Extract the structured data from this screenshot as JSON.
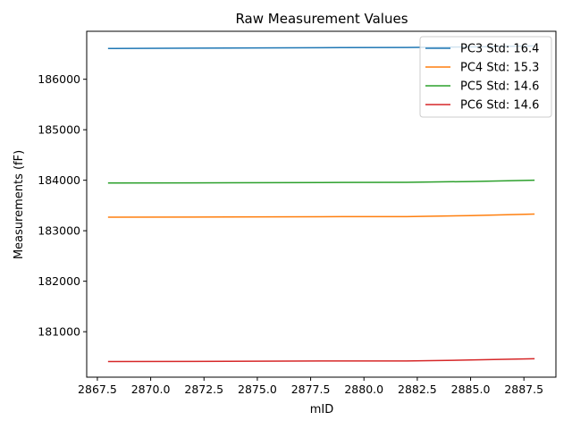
{
  "chart_data": {
    "type": "line",
    "title": "Raw Measurement Values",
    "xlabel": "mID",
    "ylabel": "Measurements (fF)",
    "xlim": [
      2867.0,
      2889.0
    ],
    "ylim": [
      180100,
      186950
    ],
    "xticks": [
      2867.5,
      2870.0,
      2872.5,
      2875.0,
      2877.5,
      2880.0,
      2882.5,
      2885.0,
      2887.5
    ],
    "xtick_labels": [
      "2867.5",
      "2870.0",
      "2872.5",
      "2875.0",
      "2877.5",
      "2880.0",
      "2882.5",
      "2885.0",
      "2887.5"
    ],
    "yticks": [
      181000,
      182000,
      183000,
      184000,
      185000,
      186000
    ],
    "ytick_labels": [
      "181000",
      "182000",
      "183000",
      "184000",
      "185000",
      "186000"
    ],
    "grid": false,
    "legend_position": "top-right",
    "x": [
      2868,
      2872,
      2878,
      2882,
      2885,
      2888
    ],
    "series": [
      {
        "name": "PC3 Std: 16.4",
        "color": "#1f77b4",
        "values": [
          186610,
          186615,
          186625,
          186630,
          186640,
          186660
        ]
      },
      {
        "name": "PC4 Std: 15.3",
        "color": "#ff7f0e",
        "values": [
          183268,
          183270,
          183278,
          183280,
          183300,
          183330
        ]
      },
      {
        "name": "PC5 Std: 14.6",
        "color": "#2ca02c",
        "values": [
          183945,
          183948,
          183955,
          183958,
          183975,
          184000
        ]
      },
      {
        "name": "PC6 Std: 14.6",
        "color": "#d62728",
        "values": [
          180410,
          180412,
          180420,
          180420,
          180440,
          180465
        ]
      }
    ]
  }
}
